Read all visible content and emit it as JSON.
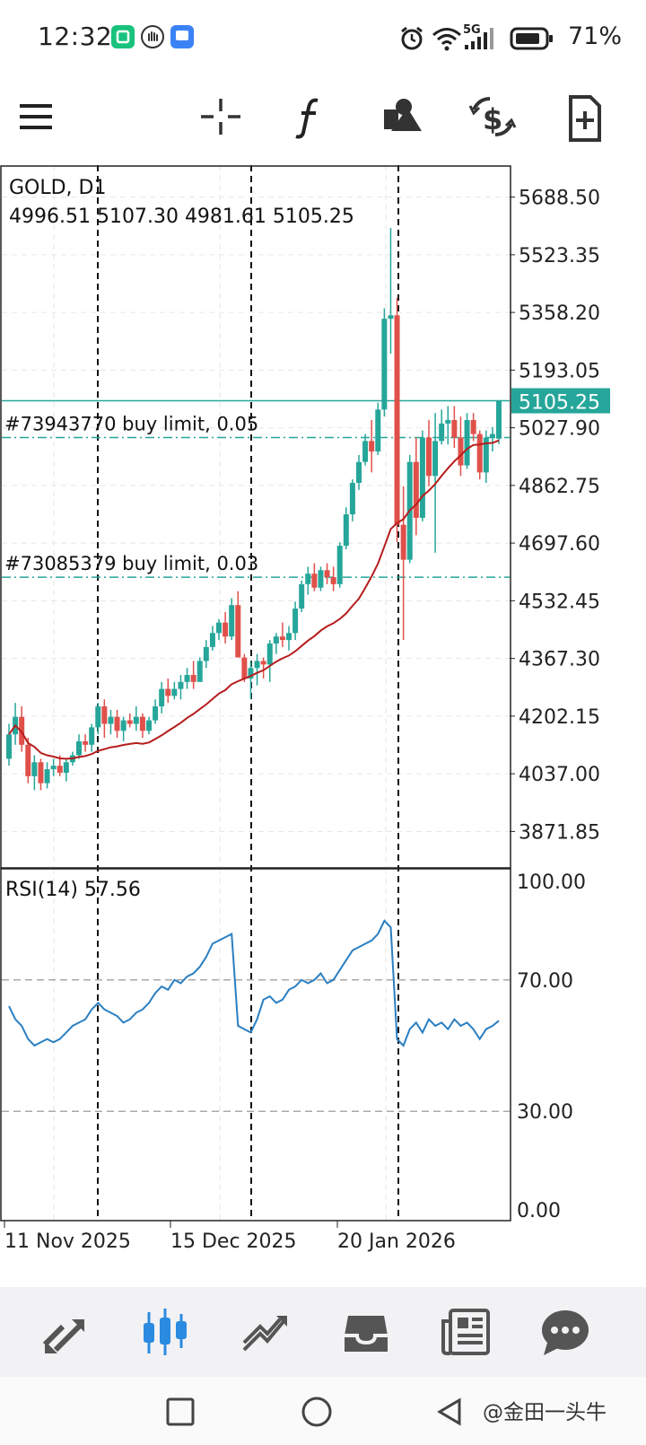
{
  "status_bar": {
    "time": "12:32",
    "network": "5G",
    "battery_percent": "71%",
    "icons": [
      "app-badge-green-icon",
      "hand-badge-icon",
      "app-badge-blue-icon",
      "alarm-icon",
      "wifi-icon",
      "signal-icon",
      "battery-icon"
    ]
  },
  "toolbar": {
    "tools": [
      "menu-icon",
      "crosshair-icon",
      "indicator-f-icon",
      "objects-icon",
      "trade-dollar-icon",
      "new-order-icon"
    ]
  },
  "chart": {
    "symbol_label": "GOLD, D1",
    "ohlc_label": "4996.51 5107.30 4981.61 5105.25",
    "current_price": "5105.25",
    "price_ticks": [
      "5688.50",
      "5523.35",
      "5358.20",
      "5193.05",
      "5027.90",
      "4862.75",
      "4697.60",
      "4532.45",
      "4367.30",
      "4202.15",
      "4037.00",
      "3871.85"
    ],
    "orders": [
      {
        "label": "#73943770 buy limit, 0.05",
        "price": 5000
      },
      {
        "label": "#73085379 buy limit, 0.03",
        "price": 4600
      }
    ],
    "rsi_label": "RSI(14) 57.56",
    "rsi_ticks": [
      "100.00",
      "70.00",
      "30.00",
      "0.00"
    ],
    "date_ticks": [
      "11 Nov 2025",
      "15 Dec 2025",
      "20 Jan 2026"
    ],
    "colors": {
      "bull": "#26a69a",
      "bear": "#e0504a",
      "ma": "#b71c1c",
      "rsi": "#2a7fc2",
      "order": "#26a69a"
    }
  },
  "chart_data": {
    "type": "candlestick",
    "title": "GOLD, D1",
    "ylim": [
      3770,
      5780
    ],
    "series": [
      {
        "name": "GOLD, D1",
        "values": [
          [
            4080,
            4180,
            4060,
            4150
          ],
          [
            4150,
            4240,
            4120,
            4200
          ],
          [
            4200,
            4230,
            4100,
            4120
          ],
          [
            4120,
            4140,
            4010,
            4030
          ],
          [
            4030,
            4090,
            3990,
            4070
          ],
          [
            4070,
            4080,
            3990,
            4010
          ],
          [
            4010,
            4070,
            3995,
            4050
          ],
          [
            4050,
            4080,
            4030,
            4060
          ],
          [
            4060,
            4090,
            4030,
            4040
          ],
          [
            4040,
            4080,
            4015,
            4070
          ],
          [
            4070,
            4100,
            4060,
            4090
          ],
          [
            4090,
            4150,
            4080,
            4130
          ],
          [
            4130,
            4150,
            4100,
            4120
          ],
          [
            4120,
            4180,
            4100,
            4170
          ],
          [
            4170,
            4240,
            4150,
            4230
          ],
          [
            4230,
            4250,
            4140,
            4180
          ],
          [
            4180,
            4220,
            4150,
            4200
          ],
          [
            4200,
            4220,
            4140,
            4160
          ],
          [
            4160,
            4200,
            4130,
            4190
          ],
          [
            4190,
            4210,
            4170,
            4180
          ],
          [
            4180,
            4230,
            4160,
            4200
          ],
          [
            4200,
            4210,
            4140,
            4160
          ],
          [
            4160,
            4200,
            4150,
            4190
          ],
          [
            4190,
            4250,
            4180,
            4230
          ],
          [
            4230,
            4300,
            4210,
            4280
          ],
          [
            4280,
            4310,
            4240,
            4260
          ],
          [
            4260,
            4300,
            4250,
            4280
          ],
          [
            4280,
            4320,
            4250,
            4300
          ],
          [
            4300,
            4340,
            4280,
            4320
          ],
          [
            4320,
            4360,
            4280,
            4300
          ],
          [
            4300,
            4370,
            4300,
            4360
          ],
          [
            4360,
            4420,
            4340,
            4400
          ],
          [
            4400,
            4460,
            4390,
            4440
          ],
          [
            4440,
            4480,
            4420,
            4470
          ],
          [
            4470,
            4500,
            4410,
            4430
          ],
          [
            4430,
            4540,
            4420,
            4520
          ],
          [
            4520,
            4560,
            4380,
            4370
          ],
          [
            4370,
            4380,
            4300,
            4310
          ],
          [
            4310,
            4360,
            4250,
            4340
          ],
          [
            4340,
            4380,
            4290,
            4360
          ],
          [
            4360,
            4370,
            4310,
            4350
          ],
          [
            4350,
            4420,
            4300,
            4410
          ],
          [
            4410,
            4440,
            4380,
            4430
          ],
          [
            4430,
            4470,
            4400,
            4420
          ],
          [
            4420,
            4460,
            4390,
            4440
          ],
          [
            4440,
            4530,
            4420,
            4510
          ],
          [
            4510,
            4590,
            4500,
            4580
          ],
          [
            4580,
            4630,
            4550,
            4610
          ],
          [
            4610,
            4640,
            4560,
            4570
          ],
          [
            4570,
            4630,
            4560,
            4620
          ],
          [
            4620,
            4640,
            4580,
            4600
          ],
          [
            4600,
            4630,
            4560,
            4580
          ],
          [
            4580,
            4700,
            4570,
            4690
          ],
          [
            4690,
            4800,
            4680,
            4780
          ],
          [
            4780,
            4880,
            4760,
            4870
          ],
          [
            4870,
            4950,
            4850,
            4930
          ],
          [
            4930,
            5010,
            4920,
            4990
          ],
          [
            4990,
            5050,
            4900,
            4960
          ],
          [
            4960,
            5100,
            4950,
            5080
          ],
          [
            5080,
            5370,
            5060,
            5340
          ],
          [
            5340,
            5600,
            5240,
            5350
          ],
          [
            5350,
            5400,
            4700,
            4750
          ],
          [
            4750,
            4860,
            4420,
            4650
          ],
          [
            4650,
            4950,
            4640,
            4930
          ],
          [
            4930,
            5000,
            4720,
            4770
          ],
          [
            4770,
            5020,
            4760,
            5000
          ],
          [
            5000,
            5050,
            4860,
            4890
          ],
          [
            4890,
            5070,
            4670,
            4990
          ],
          [
            4990,
            5080,
            4980,
            5040
          ],
          [
            5040,
            5090,
            4980,
            5050
          ],
          [
            5050,
            5090,
            4970,
            5000
          ],
          [
            5000,
            5060,
            4890,
            4920
          ],
          [
            4920,
            5070,
            4910,
            5050
          ],
          [
            5050,
            5070,
            4990,
            5010
          ],
          [
            5010,
            5020,
            4880,
            4900
          ],
          [
            4900,
            5020,
            4870,
            5000
          ],
          [
            5000,
            5030,
            4960,
            5010
          ],
          [
            4996.51,
            5107.3,
            4981.61,
            5105.25
          ]
        ]
      },
      {
        "name": "RSI(14) 57.56",
        "values": [
          62,
          58,
          56,
          52,
          50,
          51,
          52,
          51,
          52,
          54,
          56,
          57,
          58,
          61,
          63,
          61,
          60,
          59,
          57,
          58,
          60,
          61,
          63,
          66,
          68,
          67,
          70,
          69,
          71,
          72,
          74,
          77,
          81,
          82,
          83,
          84,
          56,
          55,
          54,
          58,
          64,
          65,
          63,
          64,
          67,
          68,
          70,
          69,
          70,
          72,
          69,
          70,
          73,
          76,
          79,
          80,
          81,
          82,
          84,
          88,
          86,
          52,
          50,
          55,
          57,
          54,
          58,
          56,
          57,
          55,
          58,
          56,
          57,
          55,
          52,
          55,
          56,
          57.56
        ]
      }
    ]
  },
  "nav": {
    "items": [
      "quotes-icon",
      "chart-icon",
      "trade-icon",
      "history-icon",
      "news-icon",
      "messages-icon"
    ],
    "active": 1
  },
  "system_nav": {
    "watermark": "@金田一头牛"
  }
}
